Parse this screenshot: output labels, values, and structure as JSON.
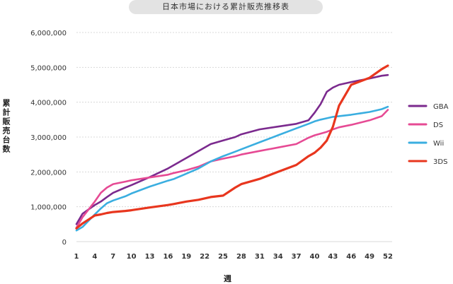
{
  "chart_data": {
    "type": "line",
    "title": "日本市場における累計販売推移表",
    "xlabel": "週",
    "ylabel": "累計販売台数",
    "xlim": [
      1,
      52
    ],
    "ylim": [
      0,
      6000000
    ],
    "x_ticks": [
      1,
      4,
      7,
      10,
      13,
      16,
      19,
      22,
      25,
      28,
      31,
      34,
      37,
      40,
      43,
      46,
      49,
      52
    ],
    "y_ticks": [
      0,
      1000000,
      2000000,
      3000000,
      4000000,
      5000000,
      6000000
    ],
    "y_tick_labels": [
      "0",
      "1,000,000",
      "2,000,000",
      "3,000,000",
      "4,000,000",
      "5,000,000",
      "6,000,000"
    ],
    "grid": "horizontal",
    "legend_position": "right",
    "x": [
      1,
      2,
      4,
      5,
      6,
      7,
      9,
      10,
      13,
      16,
      17,
      19,
      21,
      23,
      25,
      27,
      28,
      31,
      34,
      37,
      39,
      40,
      41,
      42,
      43,
      44,
      46,
      49,
      51,
      52
    ],
    "series": [
      {
        "name": "GBA",
        "color": "#7b2a8e",
        "values": [
          500000,
          800000,
          1050000,
          1150000,
          1280000,
          1400000,
          1550000,
          1620000,
          1850000,
          2100000,
          2200000,
          2400000,
          2600000,
          2800000,
          2900000,
          3000000,
          3080000,
          3220000,
          3300000,
          3380000,
          3480000,
          3700000,
          3950000,
          4300000,
          4420000,
          4500000,
          4580000,
          4680000,
          4760000,
          4780000
        ]
      },
      {
        "name": "DS",
        "color": "#e64a94",
        "values": [
          400000,
          700000,
          1150000,
          1400000,
          1550000,
          1650000,
          1720000,
          1760000,
          1840000,
          1920000,
          1970000,
          2050000,
          2150000,
          2300000,
          2380000,
          2450000,
          2500000,
          2600000,
          2700000,
          2800000,
          2980000,
          3050000,
          3100000,
          3150000,
          3220000,
          3280000,
          3350000,
          3480000,
          3600000,
          3780000
        ]
      },
      {
        "name": "Wii",
        "color": "#3aaee0",
        "values": [
          320000,
          420000,
          780000,
          950000,
          1100000,
          1180000,
          1300000,
          1380000,
          1580000,
          1750000,
          1800000,
          1950000,
          2100000,
          2300000,
          2450000,
          2580000,
          2650000,
          2850000,
          3050000,
          3250000,
          3380000,
          3450000,
          3500000,
          3540000,
          3580000,
          3600000,
          3640000,
          3720000,
          3800000,
          3870000
        ]
      },
      {
        "name": "3DS",
        "color": "#e8361e",
        "values": [
          380000,
          520000,
          750000,
          780000,
          820000,
          850000,
          880000,
          900000,
          980000,
          1050000,
          1080000,
          1150000,
          1200000,
          1280000,
          1320000,
          1550000,
          1650000,
          1800000,
          2000000,
          2200000,
          2450000,
          2550000,
          2700000,
          2900000,
          3300000,
          3900000,
          4500000,
          4700000,
          4950000,
          5050000
        ]
      }
    ]
  }
}
